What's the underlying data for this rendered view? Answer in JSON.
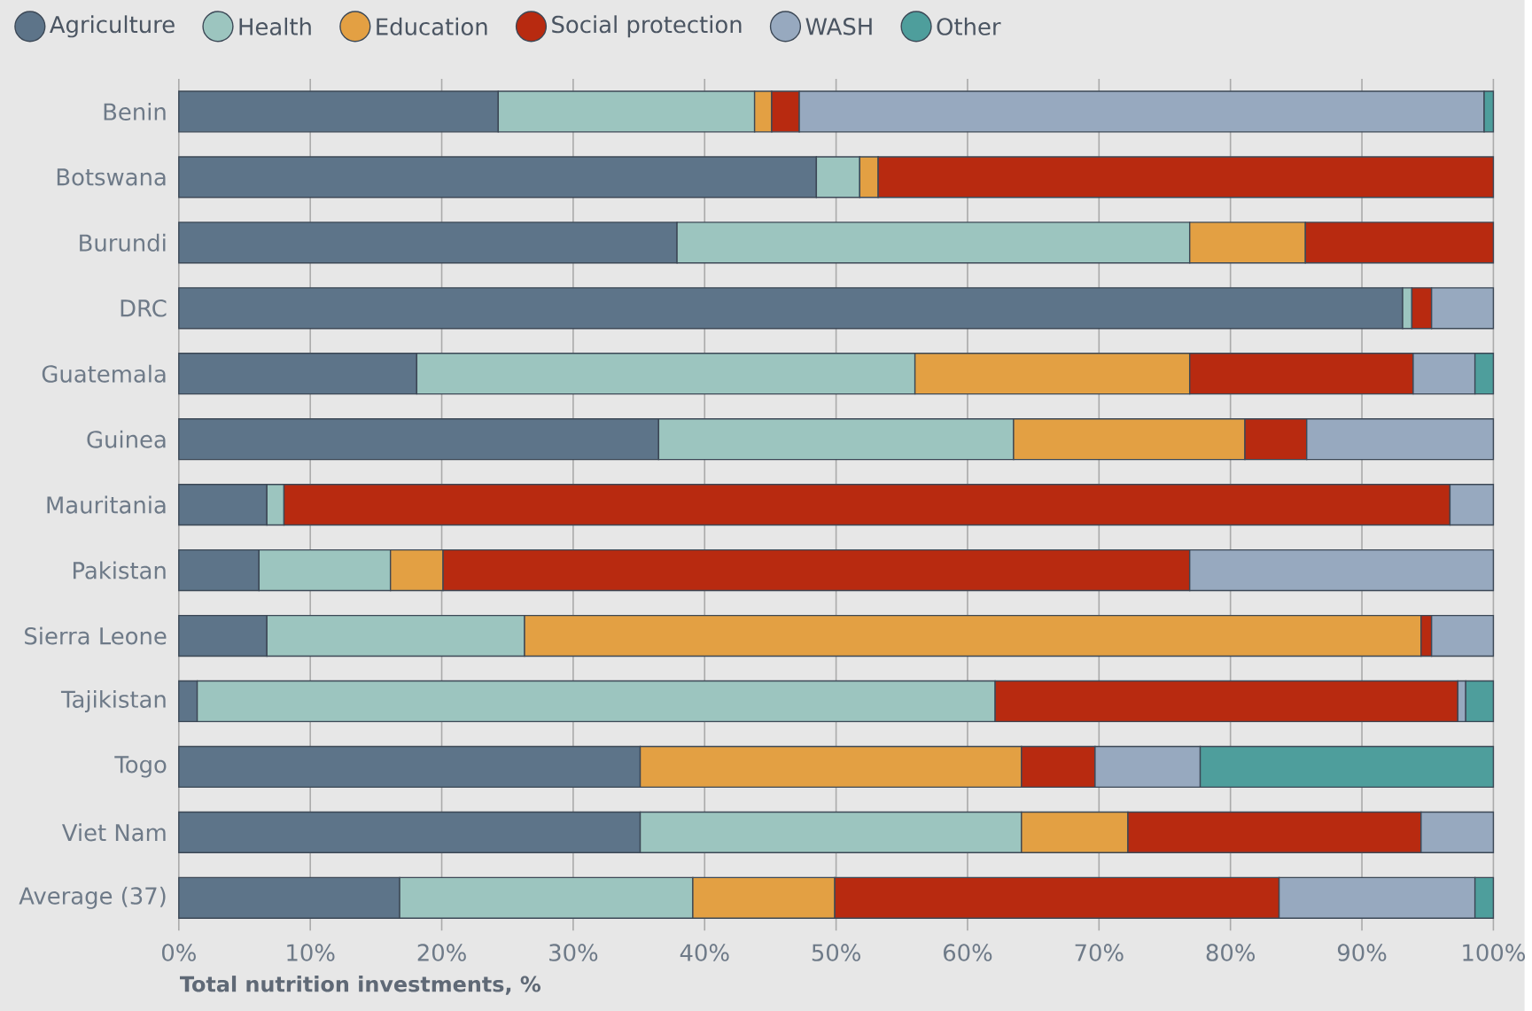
{
  "chart_data": {
    "type": "bar",
    "orientation": "horizontal",
    "stacked": true,
    "categories": [
      "Benin",
      "Botswana",
      "Burundi",
      "DRC",
      "Guatemala",
      "Guinea",
      "Mauritania",
      "Pakistan",
      "Sierra Leone",
      "Tajikistan",
      "Togo",
      "Viet Nam",
      "Average (37)"
    ],
    "series": [
      {
        "name": "Agriculture",
        "color": "#5d7489",
        "values": [
          24.3,
          48.5,
          37.9,
          93.1,
          18.1,
          36.5,
          6.7,
          6.1,
          6.7,
          1.4,
          35.1,
          35.1,
          16.8
        ]
      },
      {
        "name": "Health",
        "color": "#9cc5bf",
        "values": [
          19.5,
          3.3,
          39.0,
          0.7,
          37.9,
          27.0,
          1.3,
          10.0,
          19.6,
          60.7,
          null,
          29.0,
          22.3
        ]
      },
      {
        "name": "Education",
        "color": "#e3a043",
        "values": [
          1.3,
          1.4,
          8.8,
          null,
          20.9,
          17.6,
          null,
          4.0,
          68.2,
          null,
          29.0,
          8.1,
          10.8
        ]
      },
      {
        "name": "Social protection",
        "color": "#b82a10",
        "values": [
          2.1,
          46.8,
          14.3,
          1.5,
          17.0,
          4.7,
          88.7,
          56.8,
          0.8,
          35.2,
          5.6,
          22.3,
          33.8
        ]
      },
      {
        "name": "WASH",
        "color": "#97a9bf",
        "values": [
          52.1,
          null,
          null,
          4.7,
          4.7,
          14.2,
          3.3,
          23.1,
          4.7,
          0.6,
          8.0,
          5.5,
          14.9
        ]
      },
      {
        "name": "Other",
        "color": "#4e9e9c",
        "values": [
          0.7,
          null,
          null,
          null,
          1.4,
          null,
          null,
          null,
          null,
          2.1,
          22.3,
          null,
          1.4
        ]
      }
    ],
    "xlim": [
      0,
      100
    ],
    "xticks": [
      {
        "value": 0,
        "label": "0%"
      },
      {
        "value": 10,
        "label": "10%"
      },
      {
        "value": 20,
        "label": "20%"
      },
      {
        "value": 30,
        "label": "30%"
      },
      {
        "value": 40,
        "label": "40%"
      },
      {
        "value": 50,
        "label": "50%"
      },
      {
        "value": 60,
        "label": "60%"
      },
      {
        "value": 70,
        "label": "70%"
      },
      {
        "value": 80,
        "label": "80%"
      },
      {
        "value": 90,
        "label": "90%"
      },
      {
        "value": 100,
        "label": "100%"
      }
    ],
    "xlabel": "Total nutrition investments, %",
    "grid": "x",
    "legend": "top left"
  }
}
